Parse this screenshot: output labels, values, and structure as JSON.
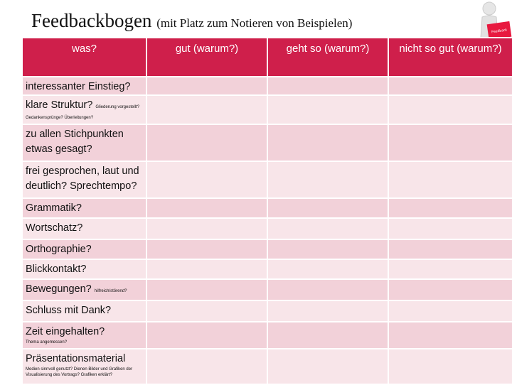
{
  "header": {
    "title": "Feedbackbogen",
    "subtitle": "(mit Platz zum Notieren von Beispielen)",
    "icon_sign": "Feedback"
  },
  "table": {
    "columns": [
      "was?",
      "gut (warum?)",
      "geht so (warum?)",
      "nicht so gut (warum?)"
    ],
    "rows": [
      {
        "label": "interessanter Einstieg?"
      },
      {
        "label": "klare Struktur?",
        "note_inline": "Gliederung vorgestellt?",
        "note_below": "Gedankensprünge? Überleitungen?"
      },
      {
        "label": "zu allen Stichpunkten etwas gesagt?"
      },
      {
        "label": "frei gesprochen, laut und deutlich? Sprechtempo?"
      },
      {
        "label": "Grammatik?"
      },
      {
        "label": "Wortschatz?"
      },
      {
        "label": "Orthographie?"
      },
      {
        "label": "Blickkontakt?"
      },
      {
        "label": "Bewegungen?",
        "note_inline": "hilfreich/störend?"
      },
      {
        "label": "Schluss mit Dank?"
      },
      {
        "label": "Zeit eingehalten?",
        "note_below": "Thema angemessen?"
      },
      {
        "label": "Präsentationsmaterial",
        "note_below": "Medien sinnvoll genutzt? Dienen Bilder und Grafiken der Visualisierung des Vortrags? Grafiken erklärt?"
      }
    ]
  }
}
